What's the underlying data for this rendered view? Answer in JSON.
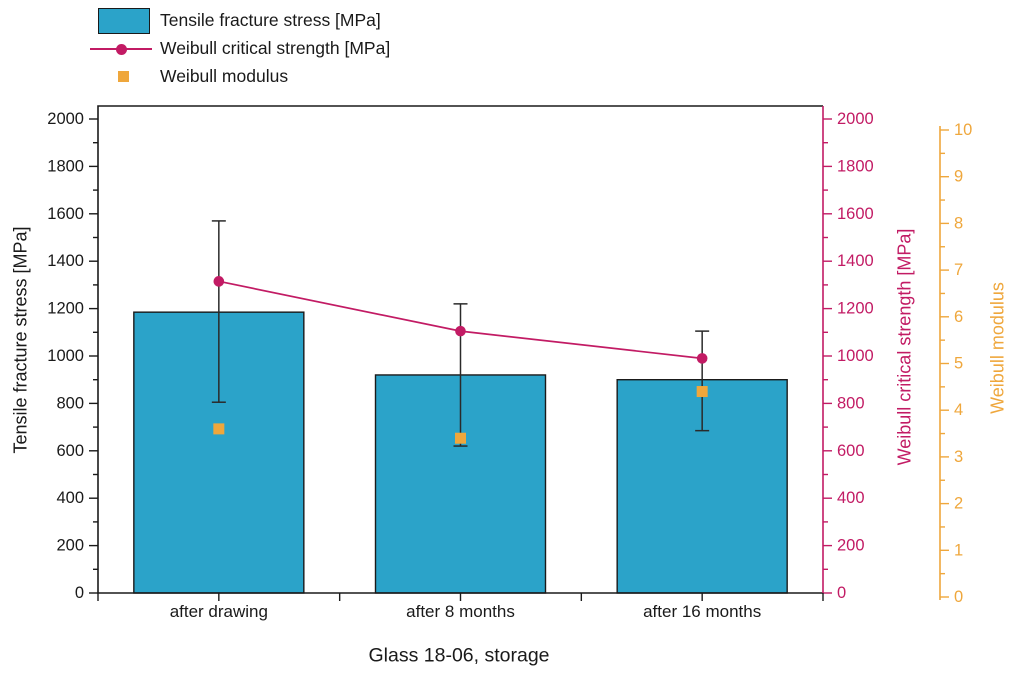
{
  "colors": {
    "bar": "#2BA3C9",
    "strength": "#C21B64",
    "modulus": "#EFA73C",
    "frame": "#1a1a1a",
    "error_bar": "#2a2a2a"
  },
  "legend": {
    "items": [
      {
        "marker": "bar-swatch",
        "label": "Tensile fracture stress [MPa]"
      },
      {
        "marker": "line-dot",
        "label": "Weibull critical strength [MPa]"
      },
      {
        "marker": "square",
        "label": "Weibull modulus"
      }
    ]
  },
  "chart_data": {
    "type": "bar",
    "subtype": "bar + line + scatter, dual right axes",
    "categories": [
      "after drawing",
      "after 8 months",
      "after 16 months"
    ],
    "series": [
      {
        "name": "Tensile fracture stress [MPa]",
        "type": "bar",
        "axis": "left",
        "values": [
          1185,
          920,
          900
        ],
        "error_high": [
          1570,
          1220,
          1105
        ],
        "error_low": [
          805,
          620,
          685
        ]
      },
      {
        "name": "Weibull critical strength [MPa]",
        "type": "line",
        "axis": "right_strength",
        "values": [
          1315,
          1105,
          990
        ]
      },
      {
        "name": "Weibull modulus",
        "type": "scatter",
        "marker": "square",
        "axis": "right_modulus",
        "values": [
          3.6,
          3.4,
          4.4
        ]
      }
    ],
    "axes": {
      "left": {
        "label": "Tensile fracture stress [MPa]",
        "min": 0,
        "max": 2000,
        "major_step": 200,
        "minor_step": 100
      },
      "right_strength": {
        "label": "Weibull critical strength [MPa]",
        "min": 0,
        "max": 2000,
        "major_step": 200,
        "minor_step": 100
      },
      "right_modulus": {
        "label": "Weibull modulus",
        "min": 0,
        "max": 10,
        "major_step": 1,
        "minor_step": 0.5
      },
      "x": {
        "label": "Glass 18-06, storage"
      }
    },
    "grid": false,
    "legend_position": "top-left"
  }
}
